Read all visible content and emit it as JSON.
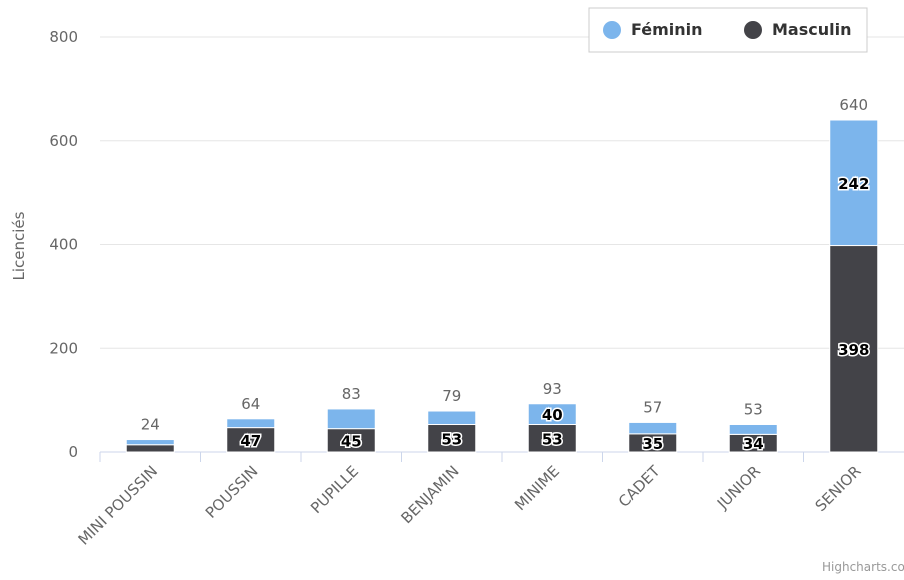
{
  "chart_data": {
    "type": "bar",
    "stacked": true,
    "categories": [
      "MINI POUSSIN",
      "POUSSIN",
      "PUPILLE",
      "BENJAMIN",
      "MINIME",
      "CADET",
      "JUNIOR",
      "SENIOR"
    ],
    "series": [
      {
        "name": "Féminin",
        "color": "#7cb5ec",
        "values": [
          10,
          17,
          38,
          26,
          40,
          22,
          19,
          242
        ]
      },
      {
        "name": "Masculin",
        "color": "#434348",
        "values": [
          14,
          47,
          45,
          53,
          53,
          35,
          34,
          398
        ]
      }
    ],
    "segment_labels": {
      "Féminin": [
        "",
        "",
        "",
        "",
        "40",
        "",
        "",
        "242"
      ],
      "Masculin": [
        "",
        "47",
        "45",
        "53",
        "53",
        "35",
        "34",
        "398"
      ]
    },
    "totals": [
      24,
      64,
      83,
      79,
      93,
      57,
      53,
      640
    ],
    "ylabel": "Licenciés",
    "ylim": [
      0,
      800
    ],
    "yticks": [
      0,
      200,
      400,
      600,
      800
    ],
    "grid": true,
    "legend_position": "top-right",
    "credit": "Highcharts.com"
  }
}
